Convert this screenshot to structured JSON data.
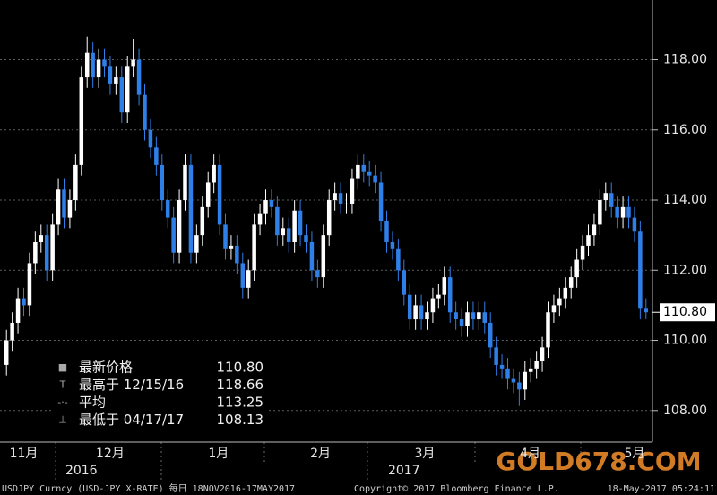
{
  "chart_data": {
    "type": "candlestick",
    "categories": [
      null,
      null,
      null,
      null,
      null,
      null,
      null,
      null,
      null,
      null,
      null,
      null,
      null,
      null,
      null,
      null,
      null,
      null,
      null,
      null,
      null,
      null,
      null,
      null,
      null,
      null,
      null,
      null,
      null,
      null,
      null,
      null,
      null,
      null,
      null,
      null,
      null,
      null,
      null,
      null,
      null,
      null,
      null,
      null,
      null,
      null,
      null,
      null,
      null,
      null,
      null,
      null,
      null,
      null,
      null,
      null,
      null,
      null,
      null,
      null,
      null,
      null,
      null,
      null,
      null,
      null,
      null,
      null,
      null,
      null,
      null,
      null,
      null,
      null,
      null,
      null,
      null,
      null,
      null,
      null,
      null,
      null,
      null,
      null,
      null,
      null,
      null,
      null,
      null,
      null,
      null,
      null,
      null,
      null,
      null,
      null,
      null,
      null,
      null,
      null,
      null,
      null,
      null,
      null,
      null,
      null,
      null,
      null,
      null,
      null,
      null,
      null
    ],
    "open": [
      109.3,
      110.0,
      110.5,
      111.2,
      111.0,
      112.2,
      112.8,
      113.0,
      112.0,
      113.3,
      114.3,
      113.5,
      114.0,
      115.0,
      117.5,
      118.2,
      117.5,
      118.0,
      117.8,
      117.3,
      117.5,
      116.5,
      117.8,
      118.0,
      117.0,
      116.0,
      115.5,
      115.0,
      114.0,
      113.5,
      112.5,
      114.0,
      115.0,
      112.5,
      113.0,
      113.8,
      114.5,
      115.0,
      113.3,
      112.6,
      112.7,
      112.2,
      111.5,
      112.0,
      113.3,
      113.6,
      114.0,
      113.8,
      113.0,
      113.2,
      112.8,
      113.7,
      113.0,
      112.8,
      112.0,
      111.8,
      113.0,
      114.0,
      114.2,
      113.9,
      113.9,
      114.6,
      115.0,
      114.8,
      114.7,
      114.5,
      113.4,
      112.8,
      112.6,
      112.0,
      111.3,
      110.6,
      111.0,
      110.6,
      110.8,
      111.2,
      111.3,
      111.8,
      110.8,
      110.6,
      110.4,
      110.8,
      110.6,
      110.8,
      110.5,
      109.8,
      109.3,
      109.2,
      108.9,
      108.8,
      108.6,
      109.1,
      109.2,
      109.4,
      109.8,
      110.8,
      111.0,
      111.2,
      111.5,
      111.8,
      112.3,
      112.7,
      113.0,
      113.3,
      114.0,
      114.2,
      113.8,
      113.5,
      113.8,
      113.5,
      113.1,
      110.9
    ],
    "high": [
      110.3,
      110.8,
      111.5,
      111.5,
      112.5,
      113.1,
      113.3,
      113.3,
      113.6,
      114.6,
      114.6,
      114.3,
      115.3,
      117.8,
      118.66,
      118.5,
      118.3,
      118.3,
      118.1,
      117.8,
      117.8,
      118.1,
      118.6,
      118.3,
      117.3,
      116.3,
      115.8,
      115.3,
      114.3,
      113.8,
      114.3,
      115.3,
      115.3,
      113.3,
      114.1,
      114.8,
      115.3,
      115.3,
      113.6,
      113.0,
      113.0,
      112.5,
      112.3,
      113.6,
      113.9,
      114.3,
      114.3,
      114.1,
      113.5,
      113.5,
      114.0,
      114.0,
      113.3,
      113.1,
      112.3,
      113.3,
      114.3,
      114.5,
      114.5,
      114.2,
      114.9,
      115.3,
      115.3,
      115.1,
      115.0,
      114.8,
      113.7,
      113.1,
      112.9,
      112.3,
      111.6,
      111.3,
      111.3,
      111.1,
      111.5,
      111.6,
      112.1,
      112.1,
      111.1,
      110.9,
      111.1,
      111.1,
      111.1,
      111.1,
      110.8,
      110.1,
      109.6,
      109.5,
      109.2,
      109.1,
      109.4,
      109.5,
      109.7,
      110.1,
      111.1,
      111.3,
      111.5,
      111.8,
      112.1,
      112.6,
      113.0,
      113.3,
      113.6,
      114.3,
      114.5,
      114.5,
      114.1,
      114.1,
      114.1,
      113.8,
      113.4,
      111.2
    ],
    "low": [
      109.0,
      109.7,
      110.2,
      110.7,
      110.7,
      111.9,
      112.5,
      111.7,
      111.7,
      113.0,
      113.2,
      113.2,
      113.7,
      114.7,
      117.2,
      117.2,
      117.2,
      117.5,
      117.0,
      117.0,
      116.2,
      116.2,
      117.5,
      116.7,
      115.7,
      115.2,
      114.7,
      113.7,
      113.2,
      112.2,
      112.2,
      113.7,
      112.2,
      112.2,
      112.7,
      113.5,
      114.2,
      113.0,
      112.3,
      112.3,
      111.9,
      111.2,
      111.2,
      111.7,
      113.0,
      113.3,
      113.5,
      112.7,
      112.7,
      112.5,
      112.5,
      112.7,
      112.5,
      111.7,
      111.5,
      111.5,
      112.7,
      113.7,
      113.6,
      113.6,
      113.6,
      114.3,
      114.5,
      114.4,
      114.2,
      113.1,
      112.5,
      112.3,
      111.7,
      111.0,
      110.3,
      110.3,
      110.3,
      110.3,
      110.5,
      110.9,
      111.0,
      110.5,
      110.3,
      110.1,
      110.1,
      110.3,
      110.3,
      110.2,
      109.5,
      109.0,
      108.9,
      108.6,
      108.5,
      108.13,
      108.3,
      108.8,
      108.9,
      109.1,
      109.5,
      110.5,
      110.7,
      110.9,
      111.2,
      111.5,
      112.0,
      112.4,
      112.7,
      113.0,
      113.7,
      113.5,
      113.2,
      113.2,
      113.2,
      112.8,
      110.6,
      110.6
    ],
    "close": [
      110.0,
      110.5,
      111.2,
      111.0,
      112.2,
      112.8,
      113.0,
      112.0,
      113.3,
      114.3,
      113.5,
      114.0,
      115.0,
      117.5,
      118.2,
      117.5,
      118.0,
      117.8,
      117.3,
      117.5,
      116.5,
      117.8,
      118.0,
      117.0,
      116.0,
      115.5,
      115.0,
      114.0,
      113.5,
      112.5,
      114.0,
      115.0,
      112.5,
      113.0,
      113.8,
      114.5,
      115.0,
      113.3,
      112.6,
      112.7,
      112.2,
      111.5,
      112.0,
      113.3,
      113.6,
      114.0,
      113.8,
      113.0,
      113.2,
      112.8,
      113.7,
      113.0,
      112.8,
      112.0,
      111.8,
      113.0,
      114.0,
      114.2,
      113.9,
      113.9,
      114.6,
      115.0,
      114.8,
      114.7,
      114.5,
      113.4,
      112.8,
      112.6,
      112.0,
      111.3,
      110.6,
      111.0,
      110.6,
      110.8,
      111.2,
      111.3,
      111.8,
      110.8,
      110.6,
      110.4,
      110.8,
      110.6,
      110.8,
      110.5,
      109.8,
      109.3,
      109.2,
      108.9,
      108.8,
      108.6,
      109.1,
      109.2,
      109.4,
      109.8,
      110.8,
      111.0,
      111.2,
      111.5,
      111.8,
      112.3,
      112.7,
      113.0,
      113.3,
      114.0,
      114.2,
      113.8,
      113.5,
      113.8,
      113.5,
      113.1,
      110.9,
      110.8
    ],
    "up_color": "#ffffff",
    "down_color": "#2f7fe8",
    "ylim": [
      107.1,
      119.7
    ],
    "yticks": [
      {
        "value": 108,
        "label": "108.00"
      },
      {
        "value": 110,
        "label": "110.00"
      },
      {
        "value": 112,
        "label": "112.00"
      },
      {
        "value": 114,
        "label": "114.00"
      },
      {
        "value": 116,
        "label": "116.00"
      },
      {
        "value": 118,
        "label": "118.00"
      }
    ],
    "xticks": [
      {
        "value": 3,
        "label": "11月"
      },
      {
        "value": 18,
        "label": "12月"
      },
      {
        "value": 36.8,
        "label": "1月"
      },
      {
        "value": 54.5,
        "label": "2月"
      },
      {
        "value": 72.6,
        "label": "3月"
      },
      {
        "value": 90.9,
        "label": "4月"
      },
      {
        "value": 109,
        "label": "5月"
      }
    ],
    "years": [
      {
        "value": 13,
        "label": "2016"
      },
      {
        "value": 69,
        "label": "2017"
      }
    ],
    "grid": true,
    "last_price": {
      "value": 110.8,
      "label": "110.80"
    },
    "legend": [
      {
        "label": "最新价格",
        "value": "110.80"
      },
      {
        "label": "最高于 12/15/16",
        "value": "118.66"
      },
      {
        "label": "平均",
        "value": "113.25"
      },
      {
        "label": "最低于 04/17/17",
        "value": "108.13"
      }
    ],
    "footer_left": "USDJPY Curncy (USD-JPY X-RATE)  每日 18NOV2016-17MAY2017",
    "footer_mid": "Copyright© 2017 Bloomberg Finance L.P.",
    "footer_right": "18-May-2017 05:24:11",
    "watermark": "GOLD678.COM"
  }
}
